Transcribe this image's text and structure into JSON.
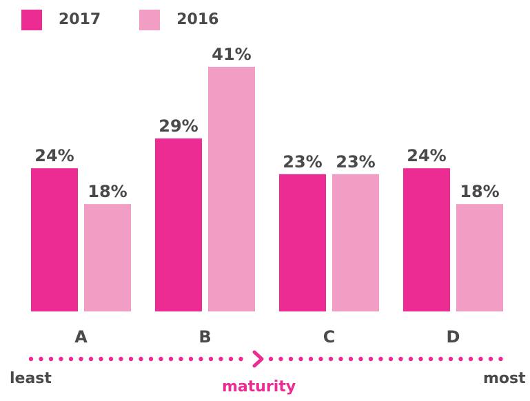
{
  "legend": [
    {
      "label": "2017",
      "color": "#ec2b93"
    },
    {
      "label": "2016",
      "color": "#f29ec4"
    }
  ],
  "chart_data": {
    "type": "bar",
    "categories": [
      "A",
      "B",
      "C",
      "D"
    ],
    "series": [
      {
        "name": "2017",
        "values": [
          24,
          29,
          23,
          24
        ],
        "color": "#ec2b93"
      },
      {
        "name": "2016",
        "values": [
          18,
          41,
          23,
          18
        ],
        "color": "#f29ec4"
      }
    ],
    "value_labels": [
      [
        "24%",
        "29%",
        "23%",
        "24%"
      ],
      [
        "18%",
        "41%",
        "23%",
        "18%"
      ]
    ],
    "ylim": [
      0,
      41
    ],
    "grid": false,
    "legend_position": "top-left"
  },
  "axis": {
    "left_label": "least",
    "center_label": "maturity",
    "right_label": "most",
    "accent_color": "#ec2b93",
    "text_color": "#4a4a4a"
  }
}
